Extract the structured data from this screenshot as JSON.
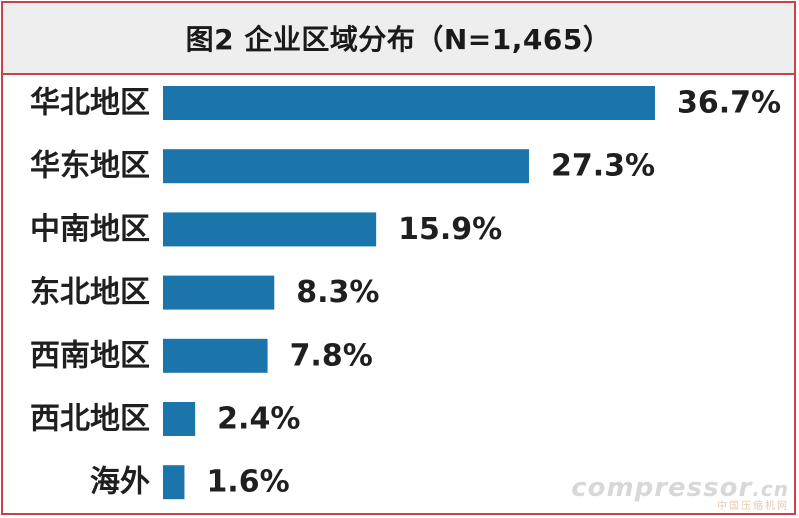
{
  "chart_data": {
    "type": "bar",
    "orientation": "horizontal",
    "title": "图2 企业区域分布（N=1,465）",
    "categories": [
      "华北地区",
      "华东地区",
      "中南地区",
      "东北地区",
      "西南地区",
      "西北地区",
      "海外"
    ],
    "values": [
      36.7,
      27.3,
      15.9,
      8.3,
      7.8,
      2.4,
      1.6
    ],
    "value_labels": [
      "36.7%",
      "27.3%",
      "15.9%",
      "8.3%",
      "7.8%",
      "2.4%",
      "1.6%"
    ],
    "value_unit": "%",
    "xlim": [
      0,
      36.7
    ],
    "xlabel": "",
    "ylabel": "",
    "grid": false,
    "legend": "none",
    "colors": {
      "bar": "#1b75ab",
      "frame": "#c8414b",
      "title_background": "#eeeeef"
    }
  },
  "watermark": {
    "main": "compressor",
    "suffix": ".cn",
    "sub": "中国压缩机网"
  }
}
